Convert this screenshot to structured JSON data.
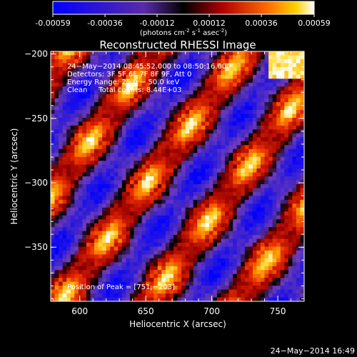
{
  "colorbar": {
    "ticks": [
      "-0.00059",
      "-0.00036",
      "-0.00012",
      "0.00012",
      "0.00036",
      "0.00059"
    ],
    "unit": "(photons cm",
    "unit_sup1": "-2",
    "unit_mid": " s",
    "unit_sup2": "-1",
    "unit_mid2": " asec",
    "unit_sup3": "-2",
    "unit_end": ")"
  },
  "chart_data": {
    "type": "heatmap",
    "title": "Reconstructed RHESSI Image",
    "xlabel": "Heliocentric X (arcsec)",
    "ylabel": "Heliocentric Y (arcsec)",
    "xlim": [
      578,
      770
    ],
    "ylim": [
      -392,
      -198
    ],
    "x_ticks": [
      600,
      650,
      700,
      750
    ],
    "y_ticks": [
      -200,
      -250,
      -300,
      -350
    ],
    "x_tick_labels": [
      "600",
      "650",
      "700",
      "750"
    ],
    "y_tick_labels": [
      "−200",
      "−250",
      "−300",
      "−350"
    ],
    "value_range": [
      -0.00059,
      0.00059
    ],
    "annotations": [
      "24−May−2014 08:45:52.000 to 08:50:16.000",
      "Detectors: 3F 5F 6F 7F 8F 9F, Att 0",
      "Energy Range: 25.0 − 50.0 keV",
      "Clean     Total counts: 8.44E+03"
    ],
    "peak_text": "Position of Peak = [751,−203]",
    "peak_position": [
      751,
      -203
    ]
  },
  "footer": {
    "timestamp": "24−May−2014 16:49"
  }
}
